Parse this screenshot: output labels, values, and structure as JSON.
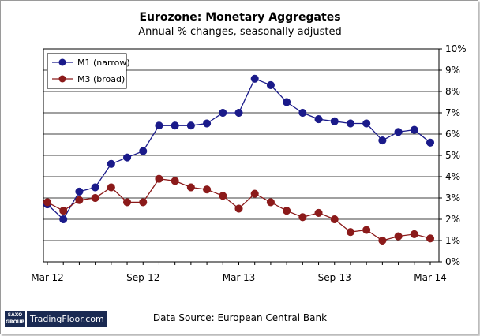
{
  "chart_data": {
    "type": "line",
    "title": "Eurozone: Monetary Aggregates",
    "subtitle": "Annual % changes, seasonally adjusted",
    "x": [
      "Mar-12",
      "Apr-12",
      "May-12",
      "Jun-12",
      "Jul-12",
      "Aug-12",
      "Sep-12",
      "Oct-12",
      "Nov-12",
      "Dec-12",
      "Jan-13",
      "Feb-13",
      "Mar-13",
      "Apr-13",
      "May-13",
      "Jun-13",
      "Jul-13",
      "Aug-13",
      "Sep-13",
      "Oct-13",
      "Nov-13",
      "Dec-13",
      "Jan-14",
      "Feb-14",
      "Mar-14"
    ],
    "x_tick_labels": [
      "Mar-12",
      "Sep-12",
      "Mar-13",
      "Sep-13",
      "Mar-14"
    ],
    "y_tick_labels": [
      "0%",
      "1%",
      "2%",
      "3%",
      "4%",
      "5%",
      "6%",
      "7%",
      "8%",
      "9%",
      "10%"
    ],
    "ylim": [
      0,
      10
    ],
    "y_axis_side": "right",
    "grid": "horizontal",
    "legend_position": "top-left",
    "series": [
      {
        "name": "M1 (narrow)",
        "color": "#1a1a8a",
        "values": [
          2.7,
          2.0,
          3.3,
          3.5,
          4.6,
          4.9,
          5.2,
          6.4,
          6.4,
          6.4,
          6.5,
          7.0,
          7.0,
          8.6,
          8.3,
          7.5,
          7.0,
          6.7,
          6.6,
          6.5,
          6.5,
          5.7,
          6.1,
          6.2,
          5.6
        ]
      },
      {
        "name": "M3 (broad)",
        "color": "#8b1a1a",
        "values": [
          2.8,
          2.4,
          2.9,
          3.0,
          3.5,
          2.8,
          2.8,
          3.9,
          3.8,
          3.5,
          3.4,
          3.1,
          2.5,
          3.2,
          2.8,
          2.4,
          2.1,
          2.3,
          2.0,
          1.4,
          1.5,
          1.0,
          1.2,
          1.3,
          1.1
        ]
      }
    ]
  },
  "footer": {
    "logo_top": "SAXO",
    "logo_bottom": "GROUP",
    "brand": "TradingFloor.com",
    "source": "Data Source: European Central Bank"
  }
}
